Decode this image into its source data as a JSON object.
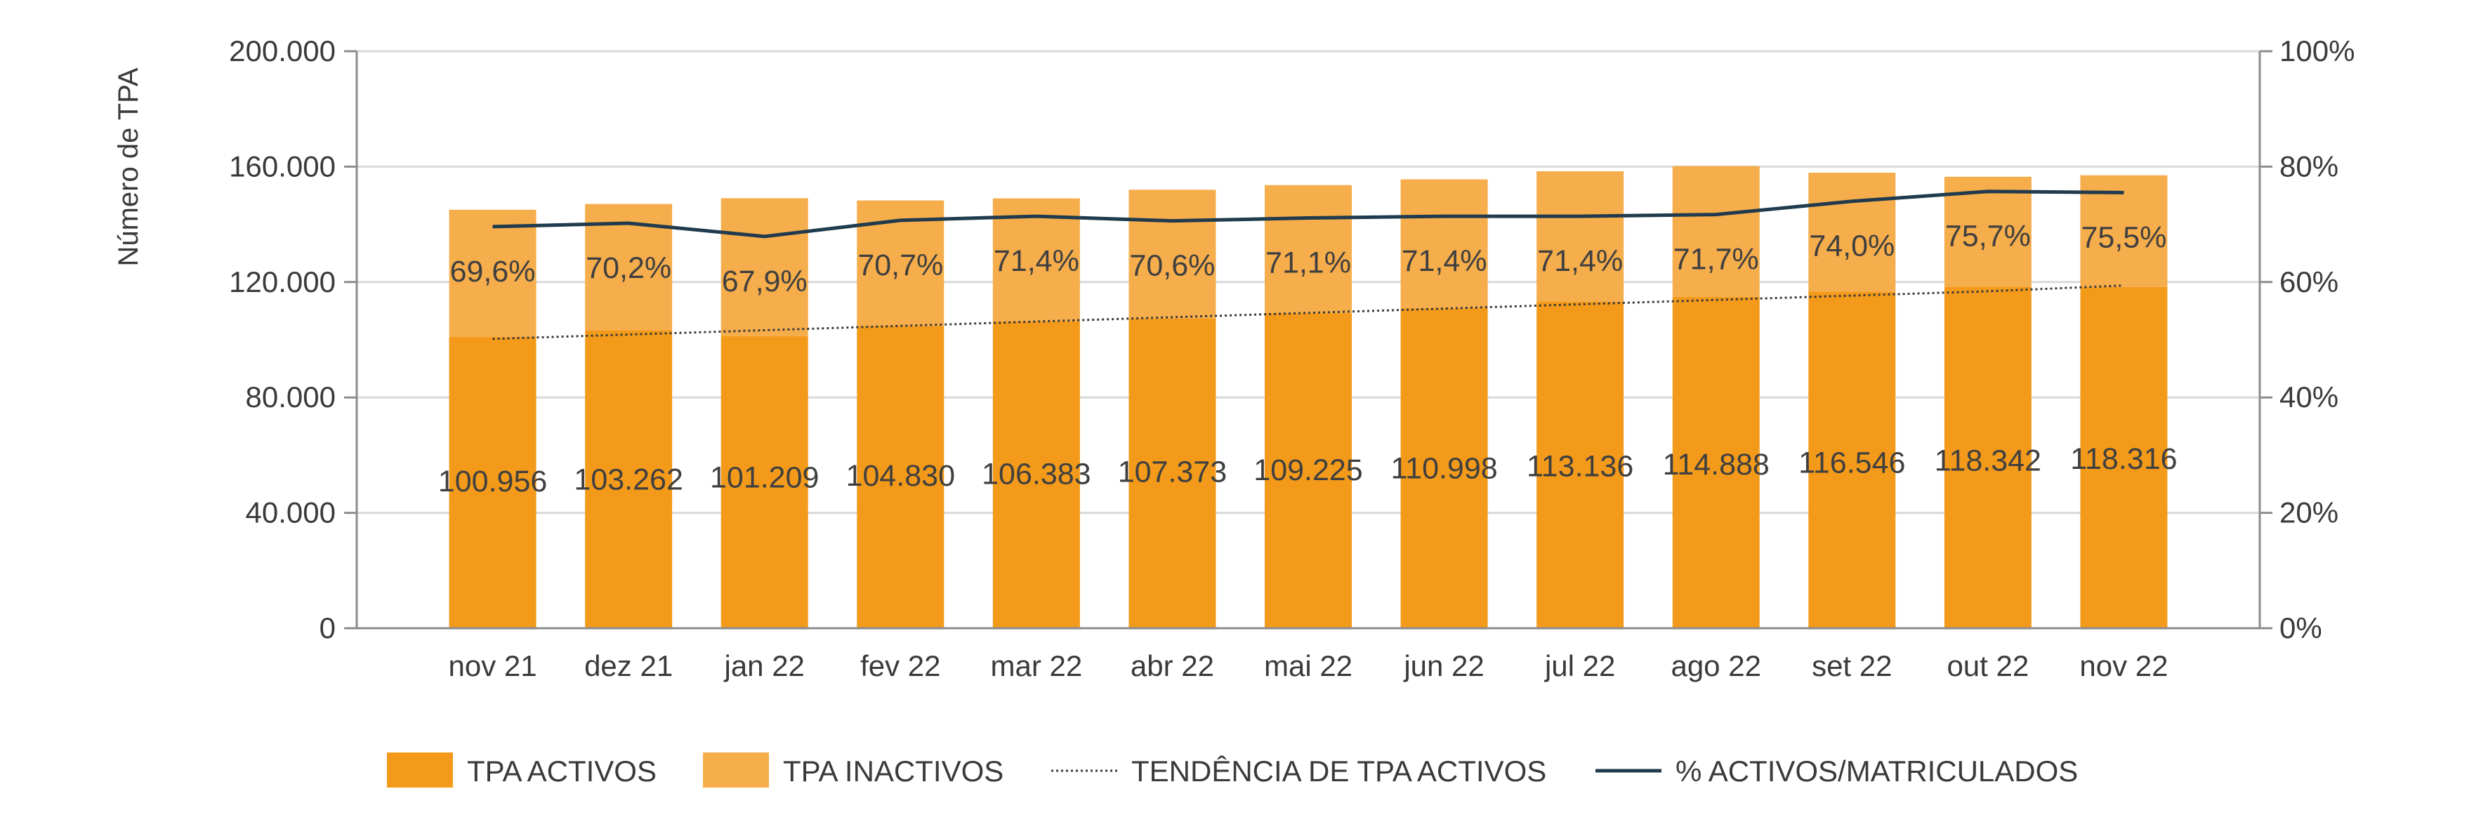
{
  "chart_data": {
    "type": "bar",
    "stacked": true,
    "ylabel": "Número de TPA",
    "xlabel": "",
    "categories": [
      "nov 21",
      "dez 21",
      "jan 22",
      "fev 22",
      "mar 22",
      "abr 22",
      "mai 22",
      "jun 22",
      "jul 22",
      "ago 22",
      "set 22",
      "out 22",
      "nov 22"
    ],
    "ylim": [
      0,
      200000
    ],
    "yticks": [
      "0",
      "40.000",
      "80.000",
      "120.000",
      "160.000",
      "200.000"
    ],
    "ytick_values": [
      0,
      40000,
      80000,
      120000,
      160000,
      200000
    ],
    "y2lim": [
      0,
      100
    ],
    "y2ticks": [
      "0%",
      "20%",
      "40%",
      "60%",
      "80%",
      "100%"
    ],
    "y2tick_values": [
      0,
      20,
      40,
      60,
      80,
      100
    ],
    "grid": true,
    "legend_position": "bottom",
    "series": [
      {
        "name": "TPA ACTIVOS",
        "kind": "bar",
        "color": "#f39a1a",
        "values": [
          100956,
          103262,
          101209,
          104830,
          106383,
          107373,
          109225,
          110998,
          113136,
          114888,
          116546,
          118342,
          118316
        ],
        "labels": [
          "100.956",
          "103.262",
          "101.209",
          "104.830",
          "106.383",
          "107.373",
          "109.225",
          "110.998",
          "113.136",
          "114.888",
          "116.546",
          "118.342",
          "118.316"
        ]
      },
      {
        "name": "TPA INACTIVOS",
        "kind": "bar",
        "color": "#f6ad4b",
        "values": [
          44100,
          43800,
          47850,
          43450,
          42617,
          44627,
          44375,
          44602,
          45264,
          45312,
          41354,
          38158,
          38684
        ]
      },
      {
        "name": "TENDÊNCIA DE TPA ACTIVOS",
        "kind": "trendline",
        "color": "#3a3a3a",
        "values": [
          100300,
          101800,
          103300,
          104800,
          106300,
          107800,
          109300,
          110800,
          112300,
          113800,
          115300,
          116800,
          118800
        ]
      },
      {
        "name": "% ACTIVOS/MATRICULADOS",
        "kind": "line",
        "axis": "right",
        "color": "#1f3b4d",
        "values": [
          69.6,
          70.2,
          67.9,
          70.7,
          71.4,
          70.6,
          71.1,
          71.4,
          71.4,
          71.7,
          74.0,
          75.7,
          75.5
        ],
        "labels": [
          "69,6%",
          "70,2%",
          "67,9%",
          "70,7%",
          "71,4%",
          "70,6%",
          "71,1%",
          "71,4%",
          "71,4%",
          "71,7%",
          "74,0%",
          "75,7%",
          "75,5%"
        ]
      }
    ]
  }
}
